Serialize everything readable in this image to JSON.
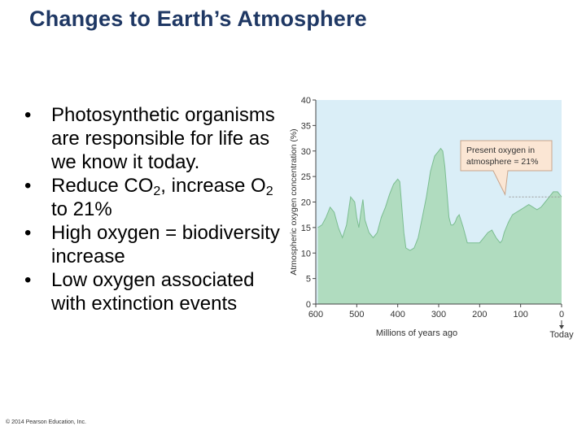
{
  "slide": {
    "title": "Changes to Earth’s Atmosphere",
    "copyright": "© 2014 Pearson Education, Inc."
  },
  "bullets": [
    {
      "pre": "Photosynthetic organisms are responsible for life as we know it today."
    },
    {
      "pre": "Reduce CO",
      "sub1": "2",
      "mid": ", increase O",
      "sub2": "2",
      "post": " to 21%"
    },
    {
      "pre": "High oxygen = biodiversity increase"
    },
    {
      "pre": "Low oxygen associated with extinction events"
    }
  ],
  "chart_data": {
    "type": "area",
    "title": "",
    "xlabel": "Millions of years ago",
    "ylabel": "Atmospheric oxygen concentration (%)",
    "xlim": [
      600,
      0
    ],
    "ylim": [
      0,
      40
    ],
    "x_ticks": [
      600,
      500,
      400,
      300,
      200,
      100,
      0
    ],
    "x_tick_labels": [
      "600",
      "500",
      "400",
      "300",
      "200",
      "100",
      "0"
    ],
    "y_ticks": [
      0,
      5,
      10,
      15,
      20,
      25,
      30,
      35,
      40
    ],
    "y_tick_labels": [
      "0",
      "5",
      "10",
      "15",
      "20",
      "25",
      "30",
      "35",
      "40"
    ],
    "today_label": "Today",
    "series": [
      {
        "name": "Atmospheric oxygen concentration",
        "x": [
          595,
          585,
          575,
          565,
          555,
          545,
          535,
          525,
          515,
          505,
          500,
          495,
          490,
          485,
          480,
          470,
          460,
          450,
          440,
          430,
          420,
          410,
          400,
          395,
          390,
          385,
          380,
          370,
          360,
          350,
          340,
          330,
          320,
          310,
          300,
          295,
          290,
          285,
          280,
          275,
          270,
          265,
          260,
          255,
          250,
          240,
          230,
          220,
          210,
          200,
          190,
          180,
          170,
          160,
          150,
          145,
          140,
          130,
          120,
          110,
          100,
          90,
          80,
          70,
          60,
          50,
          40,
          30,
          20,
          15,
          10,
          5,
          0
        ],
        "values": [
          15,
          15.5,
          17,
          19,
          18,
          15,
          13,
          15.5,
          21,
          20,
          17,
          15,
          18,
          20.5,
          16.5,
          14,
          13,
          14,
          17,
          19,
          21.5,
          23.5,
          24.5,
          24,
          19,
          14,
          11,
          10.5,
          11,
          13,
          17,
          21,
          26,
          29,
          30,
          30.5,
          30,
          27,
          22,
          17,
          15.5,
          15.5,
          16,
          17,
          17.5,
          15,
          12,
          12,
          12,
          12,
          13,
          14,
          14.5,
          13,
          12,
          12.5,
          14,
          16,
          17.5,
          18,
          18.5,
          19,
          19.5,
          19,
          18.5,
          19,
          20,
          21,
          22,
          22,
          22,
          21.5,
          21
        ]
      }
    ],
    "annotations": [
      {
        "text": "Present oxygen in atmosphere = 21%",
        "x": 140,
        "y": 21
      }
    ],
    "colors": {
      "plot_bg": "#daeef7",
      "area_fill": "#b0dcbf",
      "area_line": "#7bbd91",
      "callout_bg": "#fbe6d4",
      "callout_border": "#c9a58c",
      "text": "#333333"
    }
  }
}
